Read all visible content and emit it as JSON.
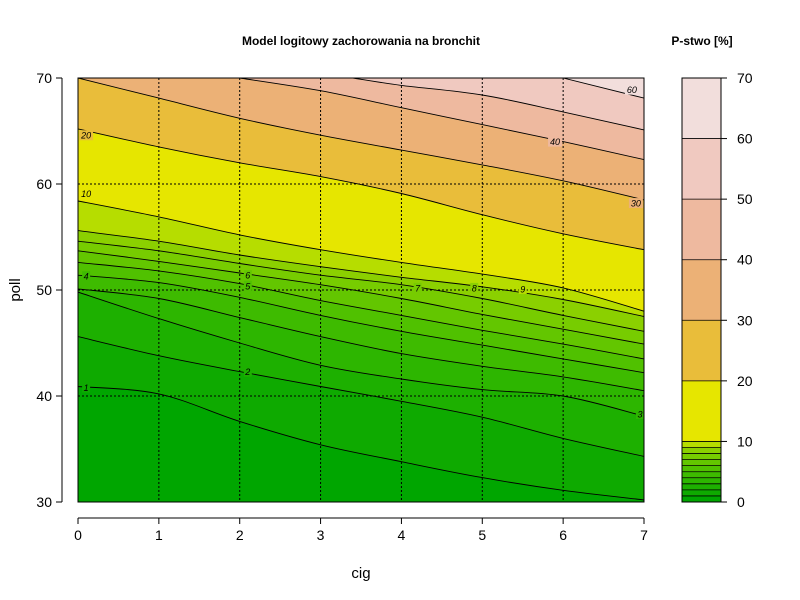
{
  "chart_data": {
    "type": "filled-contour",
    "title": "Model logitowy zachorowania na bronchit",
    "xlabel": "cig",
    "ylabel": "poll",
    "xlim": [
      0,
      7
    ],
    "ylim": [
      30,
      70
    ],
    "x_ticks": [
      "0",
      "1",
      "2",
      "3",
      "4",
      "5",
      "6",
      "7"
    ],
    "y_ticks": [
      "30",
      "40",
      "50",
      "60",
      "70"
    ],
    "grid": "dotted, at every tick",
    "legend": {
      "title": "P-stwo [%]",
      "placement": "right",
      "ticks": [
        "0",
        "10",
        "20",
        "30",
        "40",
        "50",
        "60",
        "70"
      ],
      "breaks": [
        0,
        1,
        2,
        3,
        4,
        5,
        6,
        7,
        8,
        9,
        10,
        20,
        30,
        40,
        50,
        60,
        70
      ]
    },
    "levels": [
      {
        "value": 0,
        "color": "#00A600"
      },
      {
        "value": 1,
        "color": "#0EAA00"
      },
      {
        "value": 2,
        "color": "#1DB000"
      },
      {
        "value": 3,
        "color": "#2DB600"
      },
      {
        "value": 4,
        "color": "#3EBB00"
      },
      {
        "value": 5,
        "color": "#50C100"
      },
      {
        "value": 6,
        "color": "#63C600"
      },
      {
        "value": 7,
        "color": "#77CC00"
      },
      {
        "value": 8,
        "color": "#8BD000"
      },
      {
        "value": 9,
        "color": "#B6DD00"
      },
      {
        "value": 10,
        "color": "#E6E600"
      },
      {
        "value": 20,
        "color": "#E9BD3A"
      },
      {
        "value": 30,
        "color": "#ECB176"
      },
      {
        "value": 40,
        "color": "#EEB99F"
      },
      {
        "value": 50,
        "color": "#F0C9C0"
      },
      {
        "value": 60,
        "color": "#F2DEDC"
      },
      {
        "value": 70,
        "color": "#F2F2F2"
      }
    ],
    "contours": [
      {
        "level": 1,
        "label": "1",
        "label_at": [
          0.1,
          40.8
        ],
        "points": [
          [
            0,
            40.9
          ],
          [
            1,
            40.2
          ],
          [
            2,
            37.6
          ],
          [
            3,
            35.4
          ],
          [
            4,
            33.8
          ],
          [
            5,
            32.3
          ],
          [
            6,
            31.1
          ],
          [
            7,
            30.2
          ]
        ]
      },
      {
        "level": 2,
        "label": "2",
        "label_at": [
          2.1,
          42.3
        ],
        "points": [
          [
            0,
            45.6
          ],
          [
            1,
            43.8
          ],
          [
            2,
            42.3
          ],
          [
            3,
            40.9
          ],
          [
            4,
            39.5
          ],
          [
            5,
            38.0
          ],
          [
            6,
            36.0
          ],
          [
            7,
            34.3
          ]
        ]
      },
      {
        "level": 3,
        "label": "3",
        "label_at": [
          6.95,
          38.3
        ],
        "points": [
          [
            0,
            49.8
          ],
          [
            1,
            47.3
          ],
          [
            2,
            45.0
          ],
          [
            3,
            42.9
          ],
          [
            4,
            41.6
          ],
          [
            5,
            40.6
          ],
          [
            6,
            40.0
          ],
          [
            7,
            38.1
          ]
        ]
      },
      {
        "level": 4,
        "label": "4",
        "label_at": [
          0.1,
          51.3
        ],
        "points": [
          [
            0,
            50.1
          ],
          [
            1,
            49.2
          ],
          [
            2,
            47.4
          ],
          [
            3,
            45.6
          ],
          [
            4,
            44.0
          ],
          [
            5,
            42.8
          ],
          [
            6,
            41.8
          ],
          [
            7,
            40.5
          ]
        ]
      },
      {
        "level": 5,
        "label": "5",
        "label_at": [
          2.1,
          50.4
        ],
        "points": [
          [
            0,
            51.4
          ],
          [
            1,
            50.7
          ],
          [
            2,
            49.3
          ],
          [
            3,
            47.6
          ],
          [
            4,
            46.1
          ],
          [
            5,
            44.8
          ],
          [
            6,
            43.5
          ],
          [
            7,
            42.2
          ]
        ]
      },
      {
        "level": 6,
        "label": "6",
        "label_at": [
          2.1,
          51.4
        ],
        "points": [
          [
            0,
            52.6
          ],
          [
            1,
            51.8
          ],
          [
            2,
            50.6
          ],
          [
            3,
            49.0
          ],
          [
            4,
            47.6
          ],
          [
            5,
            46.2
          ],
          [
            6,
            44.9
          ],
          [
            7,
            43.5
          ]
        ]
      },
      {
        "level": 7,
        "label": "7",
        "label_at": [
          4.2,
          50.2
        ],
        "points": [
          [
            0,
            53.7
          ],
          [
            1,
            52.7
          ],
          [
            2,
            51.6
          ],
          [
            3,
            50.5
          ],
          [
            4,
            49.2
          ],
          [
            5,
            47.7
          ],
          [
            6,
            46.3
          ],
          [
            7,
            44.9
          ]
        ]
      },
      {
        "level": 8,
        "label": "8",
        "label_at": [
          4.9,
          50.2
        ],
        "points": [
          [
            0,
            54.6
          ],
          [
            1,
            53.7
          ],
          [
            2,
            52.5
          ],
          [
            3,
            51.4
          ],
          [
            4,
            50.5
          ],
          [
            5,
            49.2
          ],
          [
            6,
            47.6
          ],
          [
            7,
            46.1
          ]
        ]
      },
      {
        "level": 9,
        "label": "9",
        "label_at": [
          5.5,
          50.1
        ],
        "points": [
          [
            0,
            55.6
          ],
          [
            1,
            54.6
          ],
          [
            2,
            53.3
          ],
          [
            3,
            52.2
          ],
          [
            4,
            51.2
          ],
          [
            5,
            50.3
          ],
          [
            6,
            49.1
          ],
          [
            7,
            47.5
          ]
        ]
      },
      {
        "level": 10,
        "label": "10",
        "label_at": [
          0.1,
          59.1
        ],
        "points": [
          [
            0,
            58.4
          ],
          [
            1,
            56.9
          ],
          [
            2,
            55.2
          ],
          [
            3,
            53.8
          ],
          [
            4,
            52.6
          ],
          [
            5,
            51.5
          ],
          [
            6,
            50.2
          ],
          [
            7,
            48.0
          ]
        ]
      },
      {
        "level": 20,
        "label": "20",
        "label_at": [
          0.1,
          64.6
        ],
        "points": [
          [
            0,
            65.2
          ],
          [
            1,
            63.5
          ],
          [
            2,
            62.0
          ],
          [
            3,
            60.7
          ],
          [
            4,
            59.1
          ],
          [
            5,
            57.1
          ],
          [
            6,
            55.3
          ],
          [
            7,
            53.8
          ]
        ]
      },
      {
        "level": 30,
        "label": "30",
        "label_at": [
          6.9,
          58.2
        ],
        "points": [
          [
            0,
            70.0
          ],
          [
            1,
            68.1
          ],
          [
            2,
            66.2
          ],
          [
            3,
            64.6
          ],
          [
            4,
            63.2
          ],
          [
            5,
            61.8
          ],
          [
            6,
            60.3
          ],
          [
            7,
            58.5
          ]
        ]
      },
      {
        "level": 40,
        "label": "40",
        "label_at": [
          5.9,
          64.0
        ],
        "points": [
          [
            2,
            70.0
          ],
          [
            3,
            68.8
          ],
          [
            4,
            67.2
          ],
          [
            5,
            65.6
          ],
          [
            6,
            64.0
          ],
          [
            7,
            62.3
          ]
        ]
      },
      {
        "level": 50,
        "label": "",
        "label_at": null,
        "points": [
          [
            3.4,
            70.0
          ],
          [
            4,
            69.3
          ],
          [
            5,
            68.4
          ],
          [
            6,
            66.8
          ],
          [
            7,
            65.1
          ]
        ]
      },
      {
        "level": 60,
        "label": "60",
        "label_at": [
          6.85,
          68.9
        ],
        "points": [
          [
            6,
            70.0
          ],
          [
            7,
            68.1
          ]
        ]
      }
    ]
  }
}
